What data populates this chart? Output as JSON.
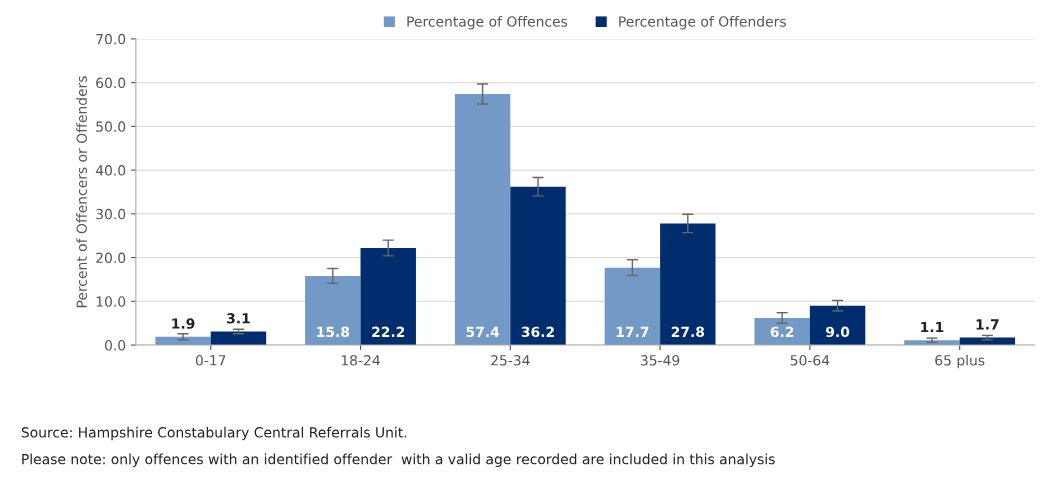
{
  "chart_data": {
    "type": "bar",
    "categories": [
      "0-17",
      "18-24",
      "25-34",
      "35-49",
      "50-64",
      "65 plus"
    ],
    "series": [
      {
        "name": "Percentage of Offences",
        "color": "#7399c6",
        "values": [
          1.9,
          15.8,
          57.4,
          17.7,
          6.2,
          1.1
        ],
        "value_labels": [
          "1.9",
          "15.8",
          "57.4",
          "17.7",
          "6.2",
          "1.1"
        ],
        "errors": [
          0.7,
          1.7,
          2.3,
          1.8,
          1.2,
          0.5
        ]
      },
      {
        "name": "Percentage of Offenders",
        "color": "#002d6e",
        "values": [
          3.1,
          22.2,
          36.2,
          27.8,
          9.0,
          1.7
        ],
        "value_labels": [
          "3.1",
          "22.2",
          "36.2",
          "27.8",
          "9.0",
          "1.7"
        ],
        "errors": [
          0.5,
          1.8,
          2.1,
          2.1,
          1.2,
          0.5
        ]
      }
    ],
    "ylabel": "Percent of Offencers or Offenders",
    "ylim": [
      0,
      70
    ],
    "yticks": [
      {
        "value": 0,
        "label": "0.0"
      },
      {
        "value": 10,
        "label": "10.0"
      },
      {
        "value": 20,
        "label": "20.0"
      },
      {
        "value": 30,
        "label": "30.0"
      },
      {
        "value": 40,
        "label": "40.0"
      },
      {
        "value": 50,
        "label": "50.0"
      },
      {
        "value": 60,
        "label": "60.0"
      },
      {
        "value": 70,
        "label": "70.0"
      }
    ],
    "grid": "y",
    "legend": "top",
    "annotations": [
      "Source: Hampshire Constabulary Central Referrals Unit.",
      "Please note: only offences with an identified offender  with a valid age recorded are included in this analysis"
    ]
  }
}
